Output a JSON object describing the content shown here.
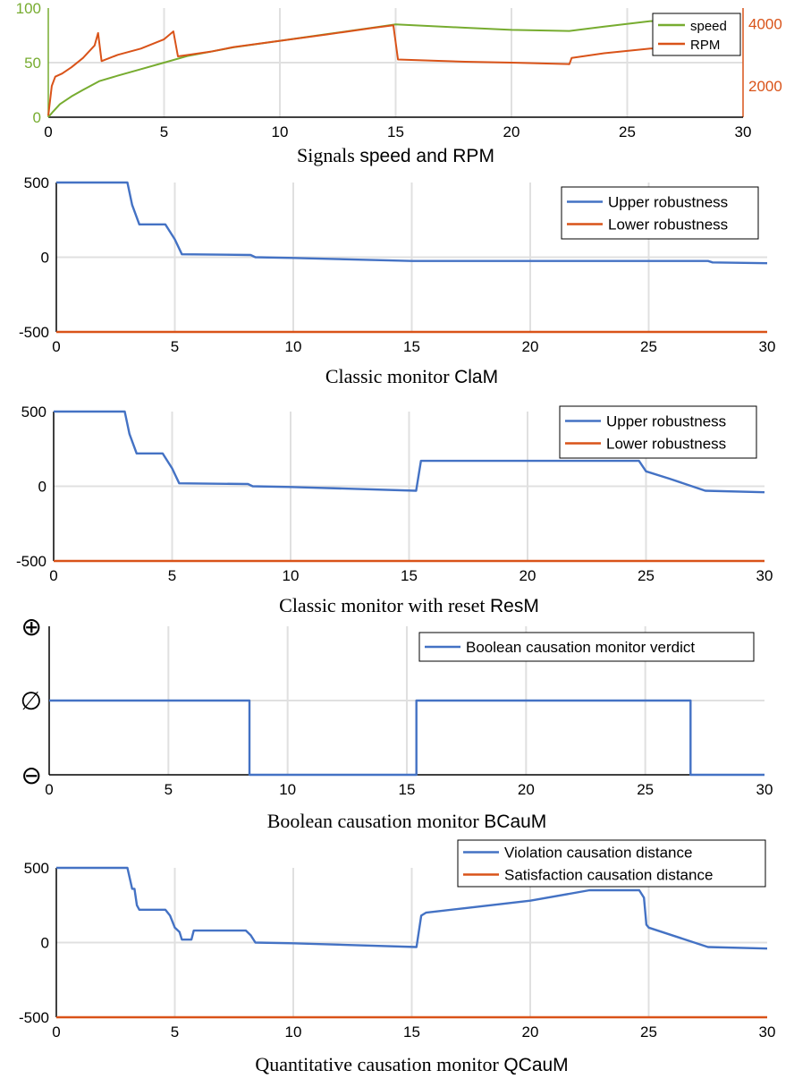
{
  "colors": {
    "speed": "#77ac30",
    "rpm": "#d95319",
    "blue": "#4472c4",
    "orange": "#d95319",
    "grid": "#e0e0e0",
    "axis": "#000000"
  },
  "chart_data": [
    {
      "type": "line",
      "caption_serif": "Signals",
      "caption_sans": "speed and RPM",
      "x_ticks": [
        "0",
        "5",
        "10",
        "15",
        "20",
        "25",
        "30"
      ],
      "y_left_ticks": [
        "0",
        "50",
        "100"
      ],
      "y_right_ticks": [
        "2000",
        "4000"
      ],
      "xlim": [
        0,
        30
      ],
      "ylim_left": [
        0,
        100
      ],
      "ylim_right": [
        1000,
        4500
      ],
      "legend_position": "top-right",
      "series": [
        {
          "name": "speed",
          "axis": "left",
          "x": [
            0,
            0.2,
            0.5,
            1,
            1.5,
            2.2,
            3,
            4,
            5,
            6,
            7,
            8,
            10,
            12,
            14,
            15,
            18,
            20,
            22.5,
            24,
            26,
            26.5
          ],
          "y": [
            0,
            5,
            12,
            19,
            25,
            33,
            38,
            44,
            50,
            56,
            60,
            64,
            70,
            76,
            82,
            85,
            82,
            80,
            79,
            83,
            88,
            88
          ]
        },
        {
          "name": "RPM",
          "axis": "right",
          "x": [
            0,
            0.15,
            0.3,
            0.6,
            1,
            1.5,
            2,
            2.15,
            2.3,
            3,
            4,
            5,
            5.4,
            5.6,
            7,
            8,
            10,
            12,
            14,
            14.9,
            15.1,
            18,
            20,
            22.5,
            22.6,
            24,
            26,
            26.5
          ],
          "y": [
            1050,
            2000,
            2300,
            2400,
            2600,
            2900,
            3300,
            3700,
            2800,
            3000,
            3200,
            3500,
            3750,
            2950,
            3100,
            3250,
            3450,
            3650,
            3860,
            3950,
            2850,
            2780,
            2750,
            2700,
            2900,
            3050,
            3200,
            3200
          ]
        }
      ]
    },
    {
      "type": "line",
      "caption_serif": "Classic monitor ",
      "caption_sans": "ClaM",
      "x_ticks": [
        "0",
        "5",
        "10",
        "15",
        "20",
        "25",
        "30"
      ],
      "y_ticks": [
        "-500",
        "0",
        "500"
      ],
      "xlim": [
        0,
        30
      ],
      "ylim": [
        -500,
        500
      ],
      "legend_position": "top-right",
      "series": [
        {
          "name": "Upper robustness",
          "x": [
            0,
            3,
            3.2,
            3.5,
            4.6,
            5,
            5.3,
            8.2,
            8.4,
            10,
            15,
            20,
            25,
            27.5,
            27.7,
            30
          ],
          "y": [
            500,
            500,
            350,
            220,
            220,
            120,
            20,
            15,
            0,
            -5,
            -25,
            -25,
            -25,
            -25,
            -35,
            -40
          ]
        },
        {
          "name": "Lower robustness",
          "x": [
            0,
            30
          ],
          "y": [
            -500,
            -500
          ]
        }
      ]
    },
    {
      "type": "line",
      "caption_serif": "Classic monitor with reset ",
      "caption_sans": "ResM",
      "x_ticks": [
        "0",
        "5",
        "10",
        "15",
        "20",
        "25",
        "30"
      ],
      "y_ticks": [
        "-500",
        "0",
        "500"
      ],
      "xlim": [
        0,
        30
      ],
      "ylim": [
        -500,
        500
      ],
      "legend_position": "top-right",
      "series": [
        {
          "name": "Upper robustness",
          "x": [
            0,
            3,
            3.2,
            3.5,
            4.6,
            5,
            5.3,
            8.2,
            8.4,
            10,
            15.3,
            15.5,
            20,
            24.7,
            25,
            26,
            27.5,
            30
          ],
          "y": [
            500,
            500,
            350,
            220,
            220,
            120,
            20,
            15,
            0,
            -5,
            -30,
            170,
            170,
            170,
            100,
            50,
            -30,
            -40
          ]
        },
        {
          "name": "Lower robustness",
          "x": [
            0,
            30
          ],
          "y": [
            -500,
            -500
          ]
        }
      ]
    },
    {
      "type": "line",
      "caption_serif": "Boolean causation monitor ",
      "caption_sans": "BCauM",
      "x_ticks": [
        "0",
        "5",
        "10",
        "15",
        "20",
        "25",
        "30"
      ],
      "y_ticks": [
        "⊖",
        "∅",
        "⊕"
      ],
      "xlim": [
        0,
        30
      ],
      "ylim": [
        -1,
        1
      ],
      "legend_position": "top-right",
      "series": [
        {
          "name": "Boolean causation monitor verdict",
          "x": [
            0,
            8.4,
            8.4,
            15.4,
            15.4,
            26.9,
            26.9,
            30
          ],
          "y": [
            0,
            0,
            -1,
            -1,
            0,
            0,
            -1,
            -1
          ]
        }
      ]
    },
    {
      "type": "line",
      "caption_serif": "Quantitative causation monitor ",
      "caption_sans": "QCauM",
      "x_ticks": [
        "0",
        "5",
        "10",
        "15",
        "20",
        "25",
        "30"
      ],
      "y_ticks": [
        "-500",
        "0",
        "500"
      ],
      "xlim": [
        0,
        30
      ],
      "ylim": [
        -500,
        500
      ],
      "legend_position": "top-right",
      "series": [
        {
          "name": "Violation causation distance",
          "x": [
            0,
            3,
            3.2,
            3.3,
            3.4,
            3.5,
            4.6,
            4.8,
            5,
            5.2,
            5.3,
            5.4,
            5.7,
            5.8,
            6,
            8,
            8.2,
            8.4,
            10,
            15.2,
            15.4,
            15.6,
            20,
            22.5,
            24.6,
            24.8,
            24.9,
            25,
            27.5,
            30
          ],
          "y": [
            500,
            500,
            360,
            360,
            250,
            220,
            220,
            180,
            100,
            70,
            20,
            20,
            20,
            80,
            80,
            80,
            50,
            0,
            -5,
            -30,
            180,
            200,
            280,
            350,
            350,
            300,
            120,
            100,
            -30,
            -40
          ]
        },
        {
          "name": "Satisfaction causation distance",
          "x": [
            0,
            30
          ],
          "y": [
            -500,
            -500
          ]
        }
      ]
    }
  ]
}
